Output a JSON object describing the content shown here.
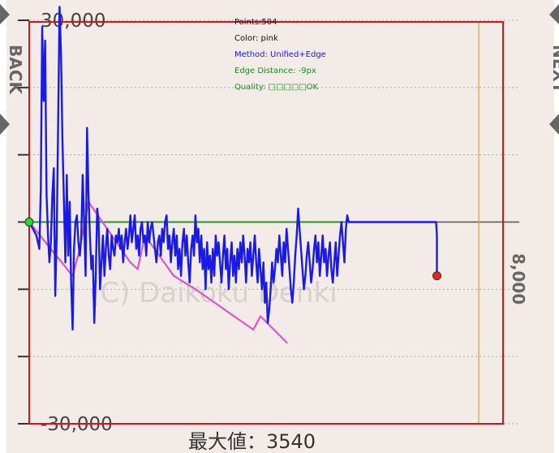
{
  "navigation": {
    "back_label": "BACK",
    "next_label": "NEXT"
  },
  "watermark": "(C) Daikoku Denki",
  "overlay": {
    "points": "Points:504",
    "color": "Color: pink",
    "method": "Method: Unified+Edge",
    "edge_distance": "Edge Distance: -9px",
    "quality": "Quality: □□□□□OK"
  },
  "colors": {
    "background": "#f2ebe8",
    "main_line": "#1a1ae6",
    "pink_line": "#dd55cc",
    "green_line": "#229922",
    "red_border": "#e01010",
    "orange_border": "#f0a020",
    "grid": "#aaaaaa"
  },
  "chart_data": {
    "type": "line",
    "title": "",
    "xlabel": "",
    "ylabel": "",
    "ylim": [
      -30000,
      30000
    ],
    "yticks": [
      30000,
      20000,
      10000,
      0,
      -10000,
      -20000,
      -30000
    ],
    "ytick_labels": [
      "30,000",
      "",
      "",
      "",
      "",
      "",
      "-30,000"
    ],
    "right_label": "8,000",
    "max_label": "最大値：3540",
    "x_range": [
      0,
      600
    ],
    "series": [
      {
        "key": "main",
        "points": [
          [
            0,
            0
          ],
          [
            5,
            -1000
          ],
          [
            10,
            -2000
          ],
          [
            14,
            -4000
          ],
          [
            16,
            5000
          ],
          [
            18,
            29000
          ],
          [
            20,
            18000
          ],
          [
            22,
            27000
          ],
          [
            24,
            4000
          ],
          [
            26,
            -2000
          ],
          [
            28,
            -6000
          ],
          [
            30,
            -3000
          ],
          [
            32,
            4000
          ],
          [
            34,
            8000
          ],
          [
            36,
            -11000
          ],
          [
            38,
            -2000
          ],
          [
            40,
            14000
          ],
          [
            42,
            32000
          ],
          [
            44,
            25000
          ],
          [
            46,
            12000
          ],
          [
            48,
            3000
          ],
          [
            50,
            -6000
          ],
          [
            52,
            7000
          ],
          [
            54,
            -5000
          ],
          [
            56,
            3000
          ],
          [
            58,
            -9000
          ],
          [
            60,
            -16000
          ],
          [
            62,
            -4000
          ],
          [
            64,
            0
          ],
          [
            66,
            1000
          ],
          [
            68,
            -3000
          ],
          [
            70,
            -5000
          ],
          [
            72,
            -2000
          ],
          [
            74,
            7000
          ],
          [
            76,
            0
          ],
          [
            78,
            -8000
          ],
          [
            80,
            14000
          ],
          [
            82,
            4000
          ],
          [
            84,
            -2000
          ],
          [
            86,
            -7000
          ],
          [
            88,
            -5000
          ],
          [
            90,
            -15000
          ],
          [
            92,
            -8000
          ],
          [
            94,
            2000
          ],
          [
            96,
            0
          ],
          [
            98,
            -10000
          ],
          [
            100,
            -6000
          ],
          [
            102,
            -2000
          ],
          [
            104,
            -8000
          ],
          [
            106,
            -4000
          ],
          [
            108,
            -1000
          ],
          [
            110,
            -5000
          ],
          [
            112,
            -7000
          ],
          [
            114,
            -2000
          ],
          [
            116,
            -4000
          ],
          [
            118,
            -5000
          ],
          [
            120,
            -2000
          ],
          [
            122,
            -3000
          ],
          [
            124,
            -1000
          ],
          [
            126,
            -4000
          ],
          [
            128,
            -2000
          ],
          [
            130,
            -6000
          ],
          [
            132,
            -3000
          ],
          [
            134,
            -1000
          ],
          [
            136,
            -4000
          ],
          [
            138,
            -2000
          ],
          [
            140,
            1000
          ],
          [
            142,
            -3000
          ],
          [
            144,
            -1000
          ],
          [
            146,
            1000
          ],
          [
            148,
            -4000
          ],
          [
            150,
            -2000
          ],
          [
            152,
            -5000
          ],
          [
            154,
            -1000
          ],
          [
            156,
            0
          ],
          [
            158,
            -3000
          ],
          [
            160,
            -2000
          ],
          [
            162,
            -5000
          ],
          [
            164,
            0
          ],
          [
            166,
            -3000
          ],
          [
            168,
            -1000
          ],
          [
            170,
            0
          ],
          [
            172,
            -2000
          ],
          [
            174,
            -4000
          ],
          [
            176,
            -6000
          ],
          [
            178,
            -3000
          ],
          [
            180,
            -2000
          ],
          [
            182,
            -5000
          ],
          [
            184,
            -1000
          ],
          [
            186,
            -3000
          ],
          [
            188,
            0
          ],
          [
            190,
            1000
          ],
          [
            192,
            -4000
          ],
          [
            194,
            -2000
          ],
          [
            196,
            -6000
          ],
          [
            198,
            -3000
          ],
          [
            200,
            -1000
          ],
          [
            202,
            -5000
          ],
          [
            204,
            -2000
          ],
          [
            206,
            -7000
          ],
          [
            208,
            -4000
          ],
          [
            210,
            -8000
          ],
          [
            212,
            -3000
          ],
          [
            214,
            -1000
          ],
          [
            216,
            -5000
          ],
          [
            218,
            -2000
          ],
          [
            220,
            -6000
          ],
          [
            222,
            -9000
          ],
          [
            224,
            -4000
          ],
          [
            226,
            -2000
          ],
          [
            228,
            -5000
          ],
          [
            230,
            1000
          ],
          [
            232,
            -3000
          ],
          [
            234,
            -1000
          ],
          [
            236,
            -6000
          ],
          [
            238,
            -2000
          ],
          [
            240,
            -7000
          ],
          [
            242,
            -4000
          ],
          [
            244,
            -10000
          ],
          [
            246,
            -3000
          ],
          [
            248,
            -7000
          ],
          [
            250,
            -5000
          ],
          [
            252,
            -9000
          ],
          [
            254,
            -4000
          ],
          [
            256,
            -8000
          ],
          [
            258,
            -2000
          ],
          [
            260,
            -5000
          ],
          [
            262,
            -3000
          ],
          [
            264,
            -6000
          ],
          [
            266,
            -9000
          ],
          [
            268,
            -5000
          ],
          [
            270,
            -2000
          ],
          [
            272,
            -7000
          ],
          [
            274,
            -4000
          ],
          [
            276,
            -10000
          ],
          [
            278,
            -6000
          ],
          [
            280,
            -3000
          ],
          [
            282,
            -8000
          ],
          [
            284,
            -5000
          ],
          [
            286,
            -9000
          ],
          [
            288,
            -4000
          ],
          [
            290,
            -7000
          ],
          [
            292,
            -3000
          ],
          [
            294,
            -6000
          ],
          [
            296,
            -2000
          ],
          [
            298,
            -5000
          ],
          [
            300,
            -9000
          ],
          [
            302,
            -4000
          ],
          [
            304,
            -6000
          ],
          [
            306,
            -3000
          ],
          [
            308,
            -8000
          ],
          [
            310,
            -5000
          ],
          [
            312,
            -2000
          ],
          [
            314,
            -6000
          ],
          [
            316,
            -9000
          ],
          [
            318,
            -4000
          ],
          [
            320,
            -7000
          ],
          [
            322,
            -10000
          ],
          [
            324,
            -6000
          ],
          [
            326,
            -12000
          ],
          [
            328,
            -9000
          ],
          [
            330,
            -15000
          ],
          [
            332,
            -13000
          ],
          [
            334,
            -10000
          ],
          [
            336,
            -6000
          ],
          [
            338,
            -9000
          ],
          [
            340,
            -7000
          ],
          [
            342,
            -4000
          ],
          [
            344,
            -6000
          ],
          [
            346,
            -2000
          ],
          [
            348,
            -5000
          ],
          [
            350,
            -8000
          ],
          [
            352,
            -3000
          ],
          [
            354,
            -6000
          ],
          [
            356,
            -1000
          ],
          [
            358,
            -4000
          ],
          [
            360,
            -7000
          ],
          [
            362,
            -10000
          ],
          [
            364,
            -12000
          ],
          [
            366,
            -9000
          ],
          [
            368,
            -5000
          ],
          [
            370,
            -2000
          ],
          [
            372,
            2000
          ],
          [
            374,
            -1000
          ],
          [
            376,
            -4000
          ],
          [
            378,
            -7000
          ],
          [
            380,
            -10000
          ],
          [
            382,
            -8000
          ],
          [
            384,
            -5000
          ],
          [
            386,
            -3000
          ],
          [
            388,
            -6000
          ],
          [
            390,
            -9000
          ],
          [
            392,
            -7000
          ],
          [
            394,
            -4000
          ],
          [
            396,
            -2000
          ],
          [
            398,
            -6000
          ],
          [
            400,
            -3000
          ],
          [
            402,
            -8000
          ],
          [
            404,
            -5000
          ],
          [
            406,
            -2000
          ],
          [
            408,
            -6000
          ],
          [
            410,
            -4000
          ],
          [
            412,
            -8000
          ],
          [
            414,
            -5000
          ],
          [
            416,
            -3000
          ],
          [
            418,
            -7000
          ],
          [
            420,
            -9000
          ],
          [
            422,
            -6000
          ],
          [
            424,
            -3000
          ],
          [
            426,
            -8000
          ],
          [
            428,
            -5000
          ],
          [
            430,
            -2000
          ],
          [
            432,
            0
          ],
          [
            434,
            -3000
          ],
          [
            436,
            -6000
          ],
          [
            438,
            -1000
          ],
          [
            440,
            1000
          ],
          [
            442,
            0
          ],
          [
            444,
            0
          ],
          [
            500,
            0
          ],
          [
            540,
            0
          ],
          [
            563,
            0
          ],
          [
            564,
            -2000
          ],
          [
            564,
            -8000
          ]
        ]
      },
      {
        "key": "pink",
        "points": [
          [
            0,
            0
          ],
          [
            60,
            -8000
          ],
          [
            70,
            -4000
          ],
          [
            82,
            3000
          ],
          [
            140,
            -6000
          ],
          [
            150,
            -7000
          ],
          [
            160,
            -2000
          ],
          [
            200,
            -8000
          ],
          [
            230,
            -10000
          ],
          [
            270,
            -13000
          ],
          [
            310,
            -16000
          ],
          [
            320,
            -14000
          ],
          [
            357,
            -18000
          ]
        ]
      },
      {
        "key": "green",
        "points": [
          [
            0,
            0
          ],
          [
            440,
            0
          ]
        ]
      }
    ],
    "markers": [
      {
        "key": "start",
        "x": 0,
        "y": 0,
        "color": "#22dd22"
      },
      {
        "key": "end",
        "x": 564,
        "y": -8000,
        "color": "#ee2222"
      }
    ]
  }
}
